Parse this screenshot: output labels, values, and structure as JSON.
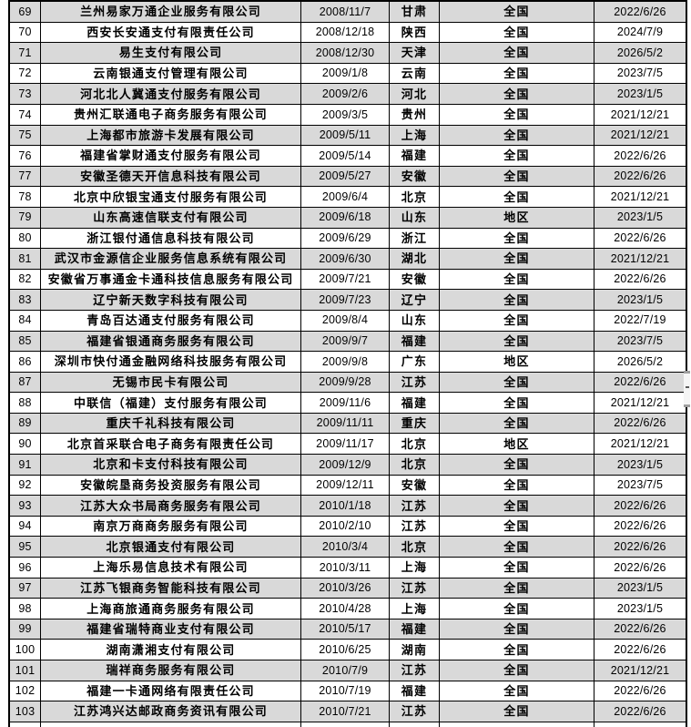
{
  "chart_data": {
    "type": "table",
    "header_visible": false,
    "first_visible_row": 69,
    "last_visible_row": 103,
    "grid": true,
    "rows": [
      [
        "69",
        "兰州易家万通企业服务有限公司",
        "2008/11/7",
        "甘肃",
        "全国",
        "2022/6/26"
      ],
      [
        "70",
        "西安长安通支付有限责任公司",
        "2008/12/18",
        "陕西",
        "全国",
        "2024/7/9"
      ],
      [
        "71",
        "易生支付有限公司",
        "2008/12/30",
        "天津",
        "全国",
        "2026/5/2"
      ],
      [
        "72",
        "云南银通支付管理有限公司",
        "2009/1/8",
        "云南",
        "全国",
        "2023/7/5"
      ],
      [
        "73",
        "河北北人冀通支付服务有限公司",
        "2009/2/6",
        "河北",
        "全国",
        "2023/1/5"
      ],
      [
        "74",
        "贵州汇联通电子商务服务有限公司",
        "2009/3/5",
        "贵州",
        "全国",
        "2021/12/21"
      ],
      [
        "75",
        "上海都市旅游卡发展有限公司",
        "2009/5/11",
        "上海",
        "全国",
        "2021/12/21"
      ],
      [
        "76",
        "福建省掌财通支付服务有限公司",
        "2009/5/14",
        "福建",
        "全国",
        "2022/6/26"
      ],
      [
        "77",
        "安徽圣德天开信息科技有限公司",
        "2009/5/27",
        "安徽",
        "全国",
        "2022/6/26"
      ],
      [
        "78",
        "北京中欣银宝通支付服务有限公司",
        "2009/6/4",
        "北京",
        "全国",
        "2021/12/21"
      ],
      [
        "79",
        "山东高速信联支付有限公司",
        "2009/6/18",
        "山东",
        "地区",
        "2023/1/5"
      ],
      [
        "80",
        "浙江银付通信息科技有限公司",
        "2009/6/29",
        "浙江",
        "全国",
        "2022/6/26"
      ],
      [
        "81",
        "武汉市金源信企业服务信息系统有限公司",
        "2009/6/30",
        "湖北",
        "全国",
        "2021/12/21"
      ],
      [
        "82",
        "安徽省万事通金卡通科技信息服务有限公司",
        "2009/7/21",
        "安徽",
        "全国",
        "2022/6/26"
      ],
      [
        "83",
        "辽宁新天数字科技有限公司",
        "2009/7/23",
        "辽宁",
        "全国",
        "2023/1/5"
      ],
      [
        "84",
        "青岛百达通支付服务有限公司",
        "2009/8/4",
        "山东",
        "全国",
        "2022/7/19"
      ],
      [
        "85",
        "福建省银通商务服务有限公司",
        "2009/9/7",
        "福建",
        "全国",
        "2023/7/5"
      ],
      [
        "86",
        "深圳市快付通金融网络科技服务有限公司",
        "2009/9/8",
        "广东",
        "地区",
        "2026/5/2"
      ],
      [
        "87",
        "无锡市民卡有限公司",
        "2009/9/28",
        "江苏",
        "全国",
        "2022/6/26"
      ],
      [
        "88",
        "中联信（福建）支付服务有限公司",
        "2009/11/6",
        "福建",
        "全国",
        "2021/12/21"
      ],
      [
        "89",
        "重庆千礼科技有限公司",
        "2009/11/11",
        "重庆",
        "全国",
        "2022/6/26"
      ],
      [
        "90",
        "北京首采联合电子商务有限责任公司",
        "2009/11/17",
        "北京",
        "地区",
        "2021/12/21"
      ],
      [
        "91",
        "北京和卡支付科技有限公司",
        "2009/12/9",
        "北京",
        "全国",
        "2023/1/5"
      ],
      [
        "92",
        "安徽皖垦商务投资服务有限公司",
        "2009/12/11",
        "安徽",
        "全国",
        "2023/7/5"
      ],
      [
        "93",
        "江苏大众书局商务服务有限公司",
        "2010/1/18",
        "江苏",
        "全国",
        "2022/6/26"
      ],
      [
        "94",
        "南京万商商务服务有限公司",
        "2010/2/10",
        "江苏",
        "全国",
        "2022/6/26"
      ],
      [
        "95",
        "北京银通支付有限公司",
        "2010/3/4",
        "北京",
        "全国",
        "2022/6/26"
      ],
      [
        "96",
        "上海乐易信息技术有限公司",
        "2010/3/11",
        "上海",
        "全国",
        "2022/6/26"
      ],
      [
        "97",
        "江苏飞银商务智能科技有限公司",
        "2010/3/26",
        "江苏",
        "全国",
        "2023/1/5"
      ],
      [
        "98",
        "上海商旅通商务服务有限公司",
        "2010/4/28",
        "上海",
        "全国",
        "2023/1/5"
      ],
      [
        "99",
        "福建省瑞特商业支付有限公司",
        "2010/5/17",
        "福建",
        "全国",
        "2022/6/26"
      ],
      [
        "100",
        "湖南潇湘支付有限公司",
        "2010/6/25",
        "湖南",
        "全国",
        "2022/6/26"
      ],
      [
        "101",
        "瑞祥商务服务有限公司",
        "2010/7/9",
        "江苏",
        "全国",
        "2021/12/21"
      ],
      [
        "102",
        "福建一卡通网络有限责任公司",
        "2010/7/19",
        "福建",
        "全国",
        "2022/6/26"
      ],
      [
        "103",
        "江苏鸿兴达邮政商务资讯有限公司",
        "2010/7/21",
        "江苏",
        "全国",
        "2022/6/26"
      ]
    ],
    "scope_values_seen": [
      "全国",
      "地区"
    ]
  },
  "colors": {
    "row_alt": "#d9d9d9",
    "border": "#000000",
    "scrollbar_track": "#f5f5f5",
    "scrollbar_dash": "#9e9e9e",
    "scrollbar_grip": "#595959"
  }
}
